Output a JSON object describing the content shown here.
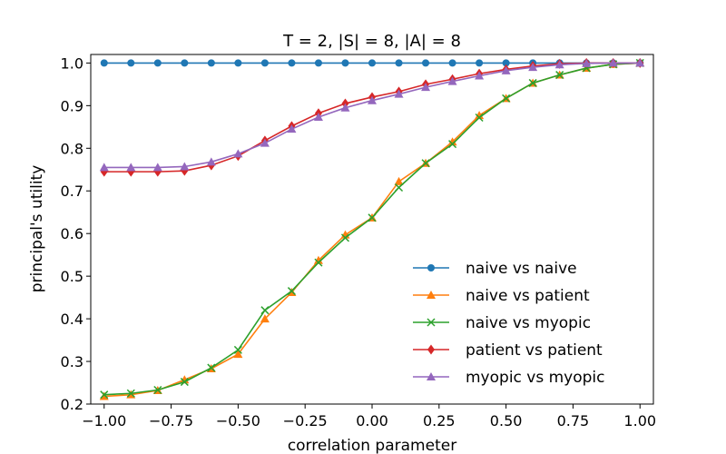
{
  "chart_data": {
    "type": "line",
    "title": "T = 2, |S| = 8, |A| = 8",
    "xlabel": "correlation parameter",
    "ylabel": "principal's utility",
    "xlim": [
      -1.05,
      1.05
    ],
    "ylim": [
      0.2,
      1.02
    ],
    "xticks": [
      -1.0,
      -0.75,
      -0.5,
      -0.25,
      0.0,
      0.25,
      0.5,
      0.75,
      1.0
    ],
    "xtick_labels": [
      "−1.00",
      "−0.75",
      "−0.50",
      "−0.25",
      "0.00",
      "0.25",
      "0.50",
      "0.75",
      "1.00"
    ],
    "yticks": [
      0.2,
      0.3,
      0.4,
      0.5,
      0.6,
      0.7,
      0.8,
      0.9,
      1.0
    ],
    "ytick_labels": [
      "0.2",
      "0.3",
      "0.4",
      "0.5",
      "0.6",
      "0.7",
      "0.8",
      "0.9",
      "1.0"
    ],
    "legend_position": "lower-right",
    "x": [
      -1.0,
      -0.9,
      -0.8,
      -0.7,
      -0.6,
      -0.5,
      -0.4,
      -0.3,
      -0.2,
      -0.1,
      0.0,
      0.1,
      0.2,
      0.3,
      0.4,
      0.5,
      0.6,
      0.7,
      0.8,
      0.9,
      1.0
    ],
    "series": [
      {
        "name": "naive vs naive",
        "color": "#1f77b4",
        "marker": "circle",
        "values": [
          1.0,
          1.0,
          1.0,
          1.0,
          1.0,
          1.0,
          1.0,
          1.0,
          1.0,
          1.0,
          1.0,
          1.0,
          1.0,
          1.0,
          1.0,
          1.0,
          1.0,
          1.0,
          1.0,
          1.0,
          1.0
        ]
      },
      {
        "name": "naive vs patient",
        "color": "#ff7f0e",
        "marker": "triangle",
        "values": [
          0.218,
          0.222,
          0.232,
          0.257,
          0.283,
          0.317,
          0.4,
          0.462,
          0.537,
          0.597,
          0.637,
          0.722,
          0.765,
          0.815,
          0.877,
          0.917,
          0.953,
          0.972,
          0.988,
          0.997,
          1.0
        ]
      },
      {
        "name": "naive vs myopic",
        "color": "#2ca02c",
        "marker": "x",
        "values": [
          0.222,
          0.225,
          0.233,
          0.252,
          0.285,
          0.327,
          0.42,
          0.465,
          0.532,
          0.59,
          0.637,
          0.708,
          0.765,
          0.81,
          0.872,
          0.917,
          0.953,
          0.972,
          0.988,
          0.997,
          1.0
        ]
      },
      {
        "name": "patient vs patient",
        "color": "#d62728",
        "marker": "diamond",
        "values": [
          0.745,
          0.745,
          0.745,
          0.747,
          0.76,
          0.782,
          0.818,
          0.852,
          0.882,
          0.905,
          0.92,
          0.933,
          0.95,
          0.962,
          0.975,
          0.985,
          0.993,
          0.998,
          1.0,
          1.0,
          1.0
        ]
      },
      {
        "name": "myopic vs myopic",
        "color": "#9467bd",
        "marker": "triangle",
        "values": [
          0.755,
          0.755,
          0.755,
          0.757,
          0.768,
          0.787,
          0.812,
          0.845,
          0.873,
          0.895,
          0.912,
          0.927,
          0.943,
          0.957,
          0.97,
          0.982,
          0.99,
          0.996,
          0.999,
          1.0,
          1.0
        ]
      }
    ]
  }
}
